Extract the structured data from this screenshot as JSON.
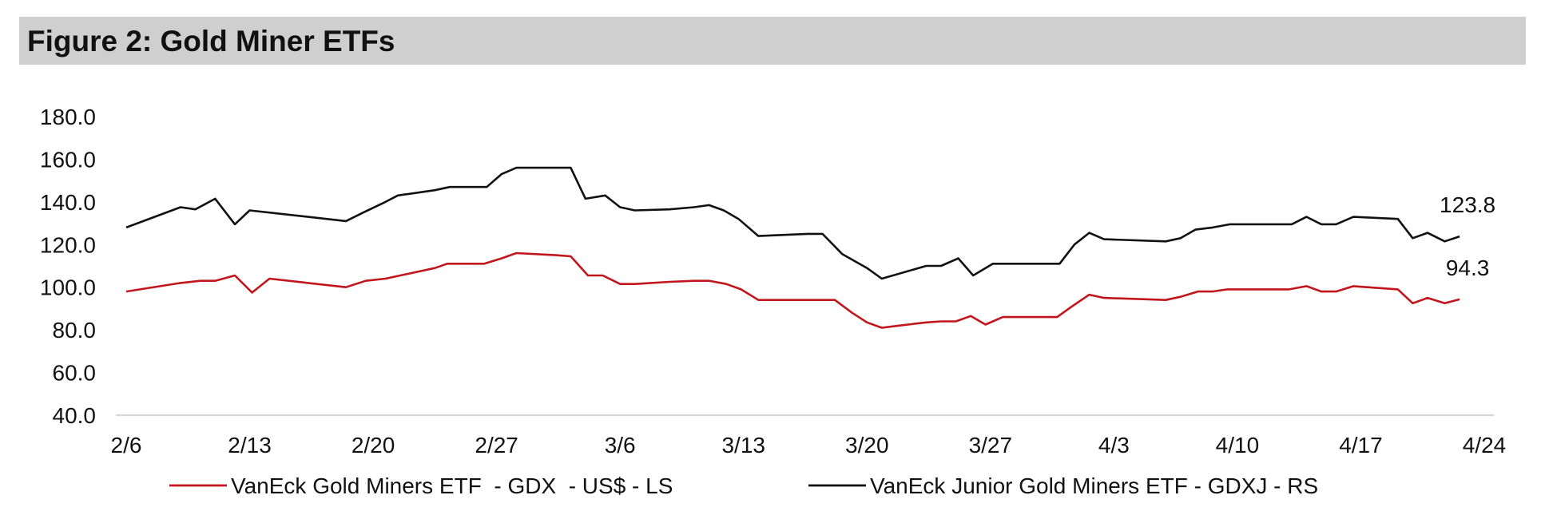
{
  "figure_title": "Figure 2: Gold Miner ETFs",
  "colors": {
    "gdx": "#c0161c",
    "gdxj": "#111111",
    "axis": "#d4d4d4",
    "title_bg": "#d0cfcf"
  },
  "chart_data": {
    "type": "line",
    "title": "Figure 2: Gold Miner ETFs",
    "ylim": [
      40,
      180
    ],
    "yticks": [
      "180.0",
      "160.0",
      "140.0",
      "120.0",
      "100.0",
      "80.0",
      "60.0",
      "40.0"
    ],
    "yticks_values": [
      180,
      160,
      140,
      120,
      100,
      80,
      60,
      40
    ],
    "x_range": [
      0,
      55
    ],
    "xticks": [
      "2/6",
      "2/13",
      "2/20",
      "2/27",
      "3/6",
      "3/13",
      "3/20",
      "3/27",
      "4/3",
      "4/10",
      "4/17",
      "4/24"
    ],
    "xticks_index": [
      0,
      5,
      10,
      15,
      20,
      25,
      30,
      35,
      40,
      45,
      50,
      55
    ],
    "series": [
      {
        "name": "VanEck Gold Miners ETF  - GDX  - US$ - LS",
        "key": "gdx",
        "end_label": "94.3",
        "points": [
          [
            0,
            98
          ],
          [
            2.2,
            102
          ],
          [
            3,
            103
          ],
          [
            3.6,
            103
          ],
          [
            4.4,
            105.5
          ],
          [
            5.1,
            97.5
          ],
          [
            5.8,
            104
          ],
          [
            8.9,
            100
          ],
          [
            9.7,
            103
          ],
          [
            10.5,
            104
          ],
          [
            11.1,
            105.5
          ],
          [
            12.5,
            109
          ],
          [
            13,
            111
          ],
          [
            14.5,
            111
          ],
          [
            15.2,
            113.5
          ],
          [
            15.8,
            116
          ],
          [
            17.4,
            115
          ],
          [
            18,
            114.5
          ],
          [
            18.7,
            105.5
          ],
          [
            19.3,
            105.5
          ],
          [
            20,
            101.5
          ],
          [
            20.6,
            101.5
          ],
          [
            22,
            102.5
          ],
          [
            23,
            103
          ],
          [
            23.6,
            103
          ],
          [
            24.3,
            101.5
          ],
          [
            24.9,
            99
          ],
          [
            25.6,
            94
          ],
          [
            26.2,
            94
          ],
          [
            28,
            94
          ],
          [
            28.7,
            94
          ],
          [
            29.4,
            88
          ],
          [
            30,
            83.5
          ],
          [
            30.6,
            81
          ],
          [
            31.3,
            82
          ],
          [
            32.4,
            83.5
          ],
          [
            33,
            84
          ],
          [
            33.6,
            84
          ],
          [
            34.2,
            86.5
          ],
          [
            34.8,
            82.5
          ],
          [
            35.5,
            86
          ],
          [
            37,
            86
          ],
          [
            37.7,
            86
          ],
          [
            38.3,
            91
          ],
          [
            39,
            96.5
          ],
          [
            39.6,
            95
          ],
          [
            42.1,
            94
          ],
          [
            42.7,
            95.5
          ],
          [
            43.4,
            98
          ],
          [
            44,
            98
          ],
          [
            44.6,
            99
          ],
          [
            46.5,
            99
          ],
          [
            47.1,
            99
          ],
          [
            47.8,
            100.5
          ],
          [
            48.4,
            98
          ],
          [
            49,
            98
          ],
          [
            49.7,
            100.5
          ],
          [
            51.5,
            99
          ],
          [
            52.1,
            92.5
          ],
          [
            52.7,
            95
          ],
          [
            53.4,
            92.5
          ],
          [
            54,
            94.3
          ]
        ]
      },
      {
        "name": "VanEck Junior Gold Miners ETF - GDXJ - RS",
        "key": "gdxj",
        "end_label": "123.8",
        "points": [
          [
            0,
            128
          ],
          [
            2.2,
            137.5
          ],
          [
            2.8,
            136.5
          ],
          [
            3.6,
            141.5
          ],
          [
            4.4,
            129.5
          ],
          [
            5,
            136
          ],
          [
            8.9,
            131
          ],
          [
            9.6,
            135
          ],
          [
            10.5,
            140
          ],
          [
            11,
            143
          ],
          [
            12.5,
            145.5
          ],
          [
            13.1,
            147
          ],
          [
            14.6,
            147
          ],
          [
            15.2,
            153
          ],
          [
            15.8,
            156
          ],
          [
            17.4,
            156
          ],
          [
            18,
            156
          ],
          [
            18.6,
            141.5
          ],
          [
            19.4,
            143
          ],
          [
            20,
            137.5
          ],
          [
            20.6,
            136
          ],
          [
            22,
            136.5
          ],
          [
            23,
            137.5
          ],
          [
            23.6,
            138.5
          ],
          [
            24.2,
            136
          ],
          [
            24.8,
            132
          ],
          [
            25.6,
            124
          ],
          [
            27.6,
            125
          ],
          [
            28.2,
            125
          ],
          [
            29,
            115.5
          ],
          [
            30,
            109
          ],
          [
            30.6,
            104
          ],
          [
            32.4,
            110
          ],
          [
            33,
            110
          ],
          [
            33.7,
            113.5
          ],
          [
            34.3,
            105.5
          ],
          [
            35.1,
            111
          ],
          [
            37.2,
            111
          ],
          [
            37.8,
            111
          ],
          [
            38.4,
            120
          ],
          [
            39,
            125.5
          ],
          [
            39.6,
            122.5
          ],
          [
            42.1,
            121.5
          ],
          [
            42.7,
            123
          ],
          [
            43.3,
            127
          ],
          [
            44,
            128
          ],
          [
            44.7,
            129.5
          ],
          [
            46.5,
            129.5
          ],
          [
            47.2,
            129.5
          ],
          [
            47.8,
            133
          ],
          [
            48.4,
            129.5
          ],
          [
            49,
            129.5
          ],
          [
            49.7,
            133
          ],
          [
            51.5,
            132
          ],
          [
            52.1,
            123
          ],
          [
            52.7,
            125.5
          ],
          [
            53.4,
            121.5
          ],
          [
            54,
            123.8
          ]
        ]
      }
    ]
  }
}
